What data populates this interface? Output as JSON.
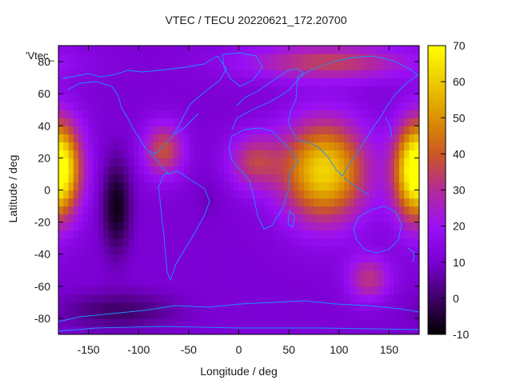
{
  "chart_data": {
    "type": "heatmap",
    "title": "VTEC / TECU 20220621_172.20700",
    "xlabel": "Longitude / deg",
    "ylabel": "Latitude / deg",
    "overlay_label": "'Vtec_",
    "xlim": [
      -180,
      180
    ],
    "ylim": [
      -90,
      90
    ],
    "x_ticks": [
      -150,
      -100,
      -50,
      0,
      50,
      100,
      150
    ],
    "y_ticks": [
      -80,
      -60,
      -40,
      -20,
      0,
      20,
      40,
      60,
      80
    ],
    "colorbar": {
      "range": [
        -10,
        70
      ],
      "ticks": [
        -10,
        0,
        10,
        20,
        30,
        40,
        50,
        60,
        70
      ],
      "palette": "gnuplot (black-purple-red-orange-yellow)"
    },
    "grid": false,
    "coastline_color": "#1e90ff",
    "features": [
      {
        "lon": 85,
        "lat": 12,
        "value": 62,
        "sigma_lon": 30,
        "sigma_lat": 22
      },
      {
        "lon": -178,
        "lat": 15,
        "value": 50,
        "sigma_lon": 16,
        "sigma_lat": 20
      },
      {
        "lon": 175,
        "lat": 10,
        "value": 45,
        "sigma_lon": 15,
        "sigma_lat": 22
      },
      {
        "lon": -75,
        "lat": 25,
        "value": 38,
        "sigma_lon": 14,
        "sigma_lat": 12
      },
      {
        "lon": 15,
        "lat": 18,
        "value": 33,
        "sigma_lon": 18,
        "sigma_lat": 12
      },
      {
        "lon": 90,
        "lat": 80,
        "value": 35,
        "sigma_lon": 60,
        "sigma_lat": 8
      },
      {
        "lon": 130,
        "lat": -55,
        "value": 32,
        "sigma_lon": 15,
        "sigma_lat": 10
      },
      {
        "lon": -122,
        "lat": -10,
        "value": -8,
        "sigma_lon": 10,
        "sigma_lat": 20
      },
      {
        "lon": -120,
        "lat": -75,
        "value": 0,
        "sigma_lon": 40,
        "sigma_lat": 8
      },
      {
        "lon": -30,
        "lat": -5,
        "value": 8,
        "sigma_lon": 10,
        "sigma_lat": 10
      }
    ]
  }
}
